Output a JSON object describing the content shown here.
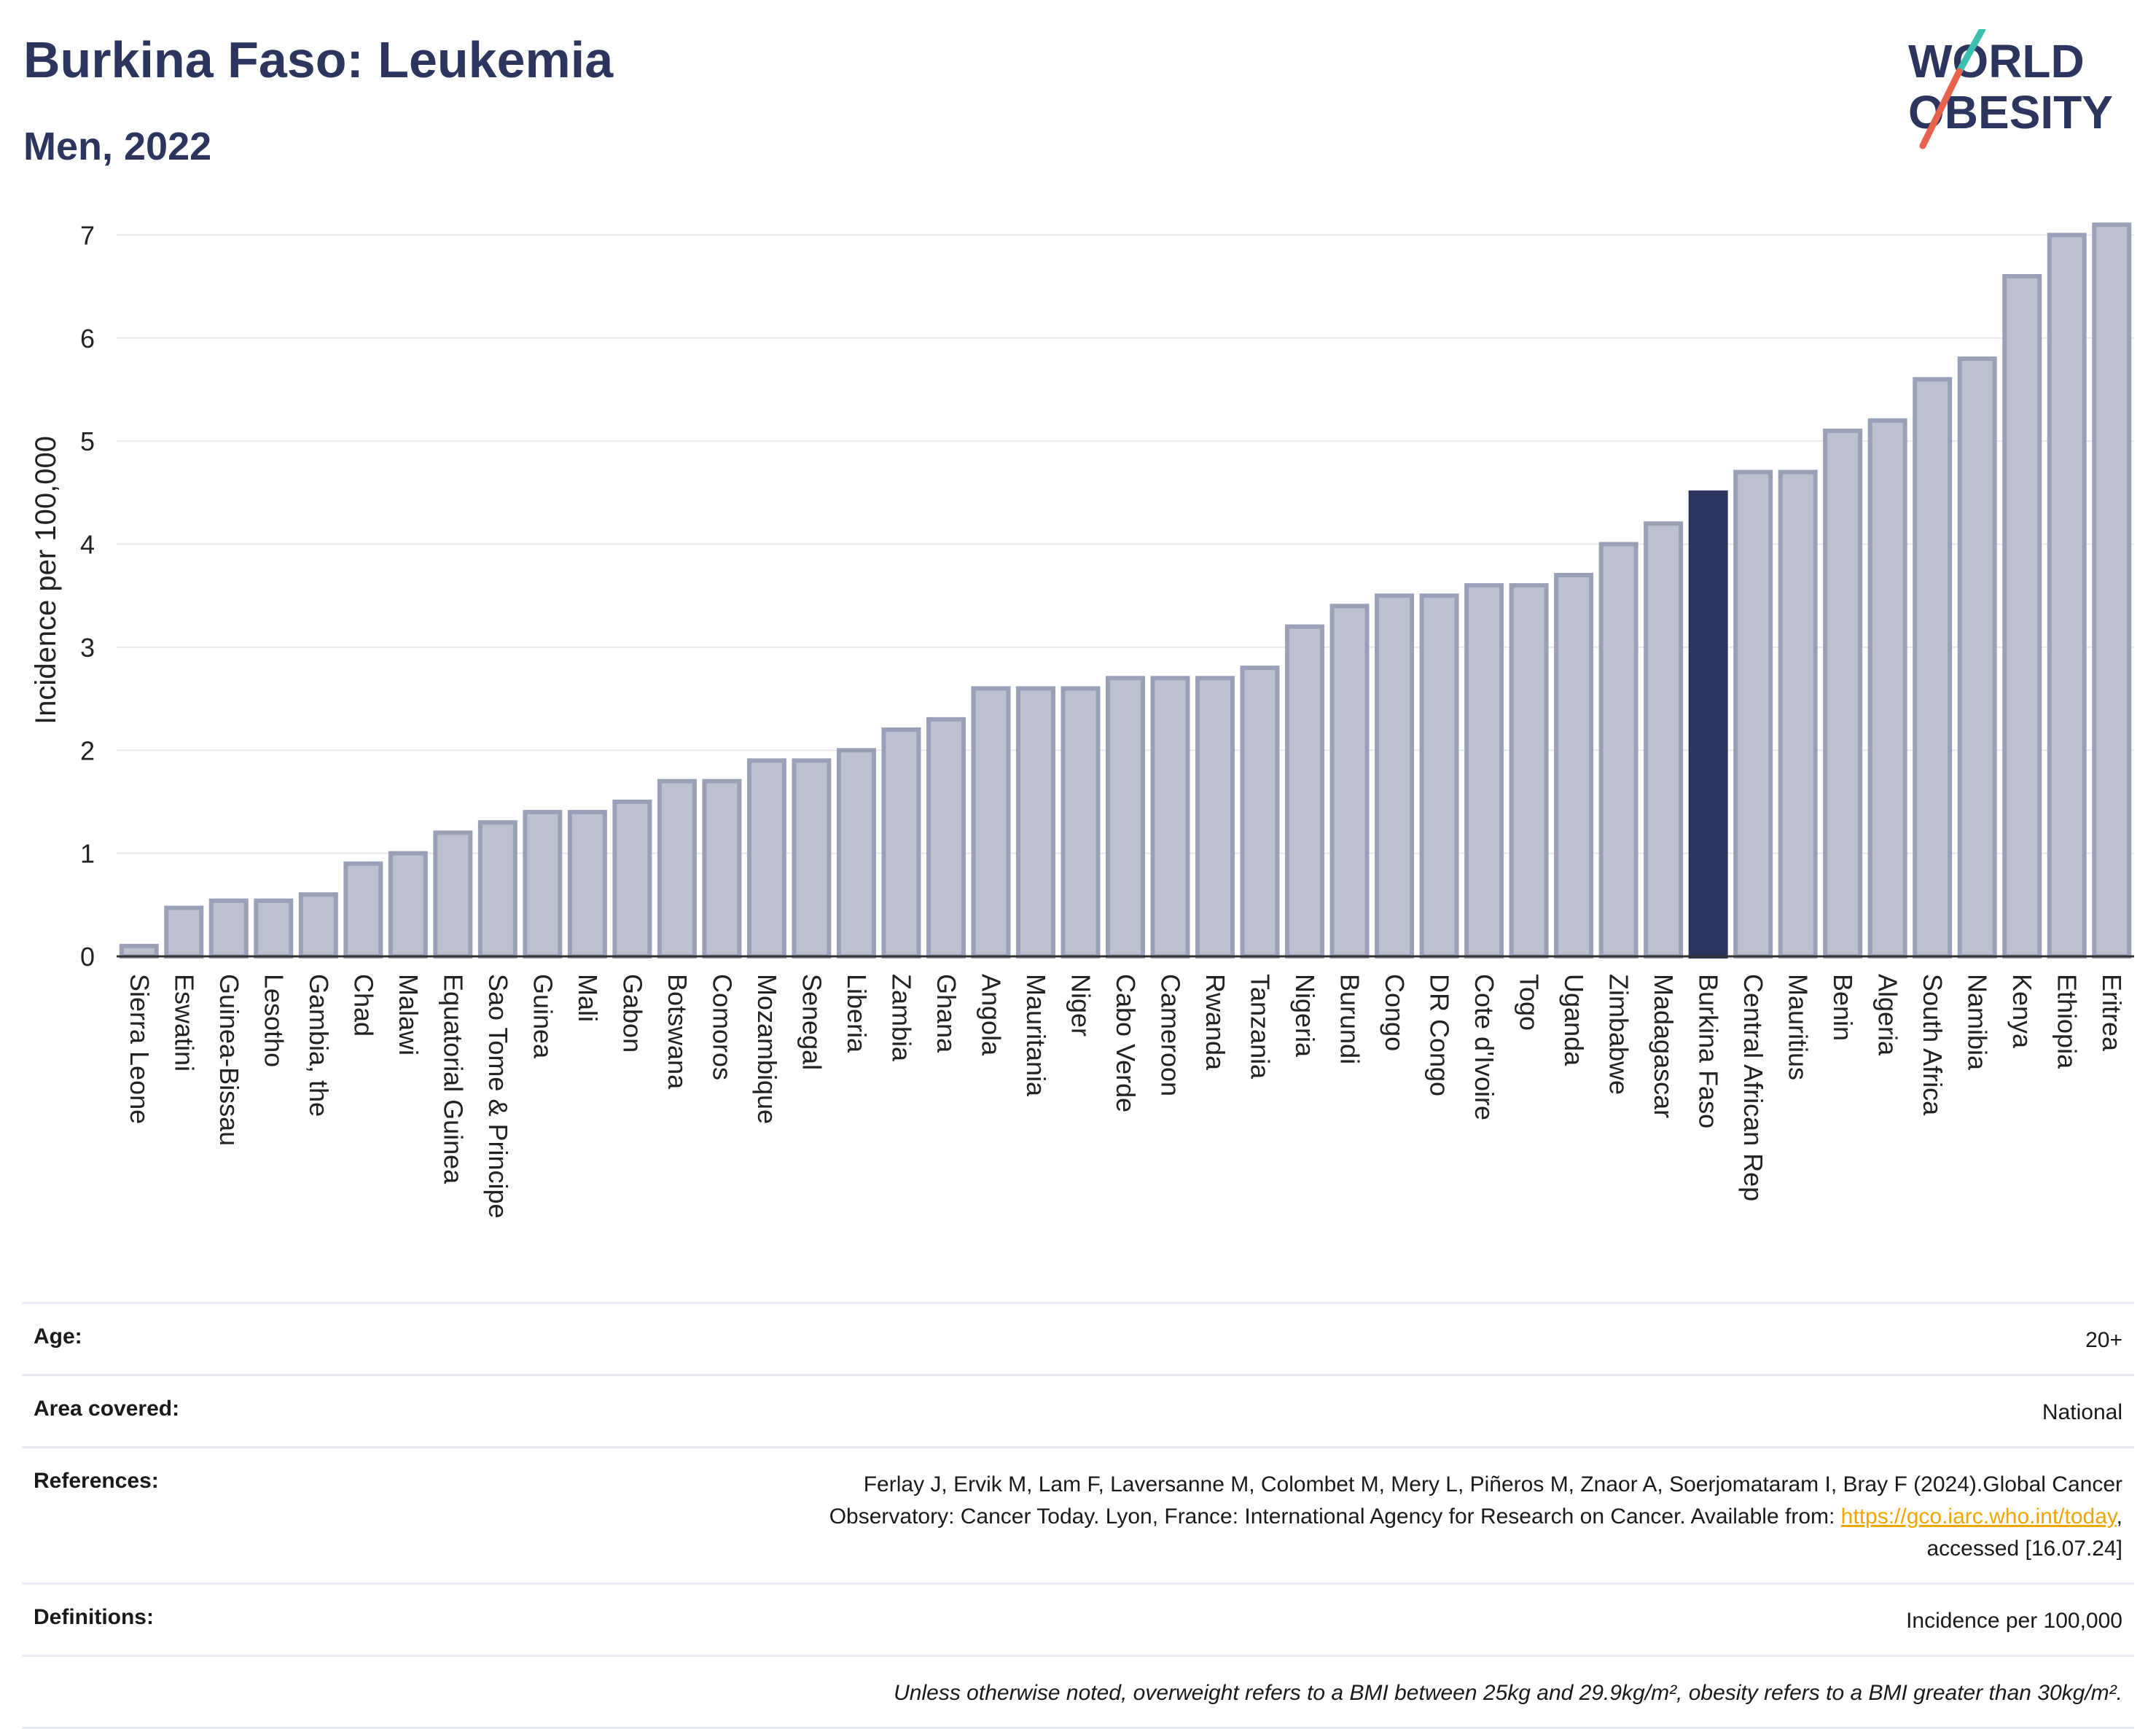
{
  "header": {
    "title": "Burkina Faso: Leukemia",
    "subtitle": "Men, 2022"
  },
  "logo": {
    "line1": "WORLD",
    "line2": "OBESITY"
  },
  "colors": {
    "bar": "#bcc0cf",
    "bar_border": "#9aa0b8",
    "highlight": "#2b355e",
    "title": "#2b355e",
    "grid": "#e6e8ee",
    "link": "#f0a500",
    "logo_slash_top": "#3bbfb0",
    "logo_slash_bottom": "#e8634e"
  },
  "chart_data": {
    "type": "bar",
    "ylabel": "Incidence per 100,000",
    "xlabel": "",
    "ylim": [
      0,
      7.3
    ],
    "yticks": [
      0,
      1,
      2,
      3,
      4,
      5,
      6,
      7
    ],
    "grid": true,
    "highlight": "Burkina Faso",
    "categories": [
      "Sierra Leone",
      "Eswatini",
      "Guinea-Bissau",
      "Lesotho",
      "Gambia, the",
      "Chad",
      "Malawi",
      "Equatorial Guinea",
      "Sao Tome & Principe",
      "Guinea",
      "Mali",
      "Gabon",
      "Botswana",
      "Comoros",
      "Mozambique",
      "Senegal",
      "Liberia",
      "Zambia",
      "Ghana",
      "Angola",
      "Mauritania",
      "Niger",
      "Cabo Verde",
      "Cameroon",
      "Rwanda",
      "Tanzania",
      "Nigeria",
      "Burundi",
      "Congo",
      "DR Congo",
      "Cote d'Ivoire",
      "Togo",
      "Uganda",
      "Zimbabwe",
      "Madagascar",
      "Burkina Faso",
      "Central African Rep",
      "Mauritius",
      "Benin",
      "Algeria",
      "South Africa",
      "Namibia",
      "Kenya",
      "Ethiopia",
      "Eritrea"
    ],
    "values": [
      0.1,
      0.47,
      0.54,
      0.54,
      0.6,
      0.9,
      1.0,
      1.2,
      1.3,
      1.4,
      1.4,
      1.5,
      1.7,
      1.7,
      1.9,
      1.9,
      2.0,
      2.2,
      2.3,
      2.6,
      2.6,
      2.6,
      2.7,
      2.7,
      2.7,
      2.8,
      3.2,
      3.4,
      3.5,
      3.5,
      3.6,
      3.6,
      3.7,
      4.0,
      4.2,
      4.5,
      4.7,
      4.7,
      5.1,
      5.2,
      5.6,
      5.8,
      6.6,
      7.0,
      7.1
    ]
  },
  "info": {
    "age_label": "Age:",
    "age_value": "20+",
    "area_label": "Area covered:",
    "area_value": "National",
    "references_label": "References:",
    "references_text_1": "Ferlay J, Ervik M, Lam F, Laversanne M, Colombet M, Mery L, Piñeros M, Znaor A, Soerjomataram I, Bray F (2024).Global Cancer",
    "references_text_2": "Observatory: Cancer Today. Lyon, France: International Agency for Research on Cancer. Available from: ",
    "references_link": "https://gco.iarc.who.int/today",
    "references_text_3": ",",
    "references_text_4": "accessed [16.07.24]",
    "definitions_label": "Definitions:",
    "definitions_value": "Incidence per 100,000",
    "note": "Unless otherwise noted, overweight refers to a BMI between 25kg and 29.9kg/m², obesity refers to a BMI greater than 30kg/m²."
  }
}
